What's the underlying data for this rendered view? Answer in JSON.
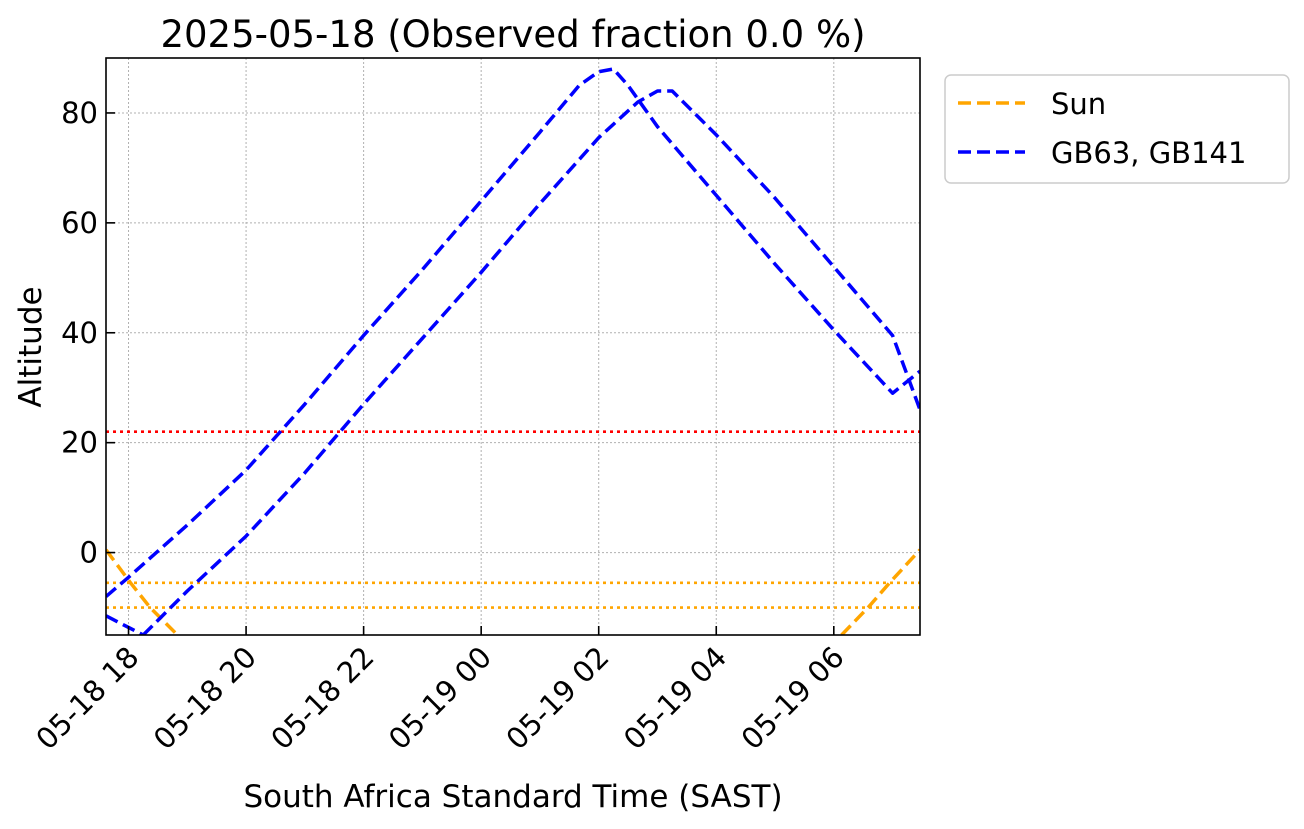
{
  "chart_data": {
    "type": "line",
    "title": "2025-05-18 (Observed fraction 0.0 %)",
    "xlabel": "South Africa Standard Time (SAST)",
    "ylabel": "Altitude",
    "xlim": [
      "2025-05-18 17:37",
      "2025-05-19 07:28"
    ],
    "ylim": [
      -15,
      90
    ],
    "grid": true,
    "legend_position": "outside upper-right",
    "x_ticks": [
      "05-18 18",
      "05-18 20",
      "05-18 22",
      "05-19 00",
      "05-19 02",
      "05-19 04",
      "05-19 06"
    ],
    "y_ticks": [
      0,
      20,
      40,
      60,
      80
    ],
    "reference_lines": [
      {
        "y": 22,
        "color": "#ff0000",
        "style": "dotted"
      },
      {
        "y": -5.5,
        "color": "#ffa500",
        "style": "dotted"
      },
      {
        "y": -10,
        "color": "#ffa500",
        "style": "dotted"
      }
    ],
    "series": [
      {
        "name": "Sun",
        "color": "#ffa500",
        "style": "dashed",
        "segments": [
          [
            [
              "2025-05-18 17:37",
              0.5
            ],
            [
              "2025-05-18 18:02",
              -5.5
            ],
            [
              "2025-05-18 18:22",
              -10
            ],
            [
              "2025-05-18 18:50",
              -15
            ]
          ],
          [
            [
              "2025-05-19 06:08",
              -15
            ],
            [
              "2025-05-19 06:35",
              -10
            ],
            [
              "2025-05-19 06:57",
              -5.5
            ],
            [
              "2025-05-19 07:28",
              0.5
            ]
          ]
        ]
      },
      {
        "name": "GB63, GB141",
        "color": "#0000ff",
        "style": "dashed",
        "segments": [
          [
            [
              "2025-05-18 17:37",
              -8
            ],
            [
              "2025-05-18 18:00",
              -4.5
            ],
            [
              "2025-05-18 19:00",
              5
            ],
            [
              "2025-05-18 20:00",
              15
            ],
            [
              "2025-05-18 21:00",
              27
            ],
            [
              "2025-05-18 22:00",
              39.5
            ],
            [
              "2025-05-18 23:00",
              51.5
            ],
            [
              "2025-05-19 00:00",
              64
            ],
            [
              "2025-05-19 01:00",
              76.5
            ],
            [
              "2025-05-19 01:40",
              85
            ],
            [
              "2025-05-19 02:00",
              87.5
            ],
            [
              "2025-05-19 02:15",
              88
            ],
            [
              "2025-05-19 02:30",
              85
            ],
            [
              "2025-05-19 03:00",
              77.5
            ],
            [
              "2025-05-19 04:00",
              65
            ],
            [
              "2025-05-19 05:00",
              52.5
            ],
            [
              "2025-05-19 06:00",
              40.5
            ],
            [
              "2025-05-19 07:00",
              29
            ],
            [
              "2025-05-19 07:28",
              33
            ]
          ],
          [
            [
              "2025-05-18 17:37",
              -11.5
            ],
            [
              "2025-05-18 18:15",
              -15
            ]
          ]
        ]
      },
      {
        "name": "",
        "color": "#0000ff",
        "style": "dashed",
        "segments": [
          [
            [
              "2025-05-18 18:15",
              -15
            ],
            [
              "2025-05-18 19:00",
              -7
            ],
            [
              "2025-05-18 20:00",
              3
            ],
            [
              "2025-05-18 21:00",
              14.5
            ],
            [
              "2025-05-18 22:00",
              27
            ],
            [
              "2025-05-18 23:00",
              39
            ],
            [
              "2025-05-19 00:00",
              51
            ],
            [
              "2025-05-19 01:00",
              63.5
            ],
            [
              "2025-05-19 02:00",
              75.5
            ],
            [
              "2025-05-19 02:40",
              82
            ],
            [
              "2025-05-19 03:00",
              84
            ],
            [
              "2025-05-19 03:15",
              84
            ],
            [
              "2025-05-19 04:00",
              76
            ],
            [
              "2025-05-19 05:00",
              64.5
            ],
            [
              "2025-05-19 06:00",
              52
            ],
            [
              "2025-05-19 07:00",
              39.5
            ],
            [
              "2025-05-19 07:28",
              26
            ]
          ]
        ]
      }
    ],
    "legend": [
      {
        "label": "Sun",
        "color": "#ffa500"
      },
      {
        "label": "GB63, GB141",
        "color": "#0000ff"
      }
    ]
  }
}
